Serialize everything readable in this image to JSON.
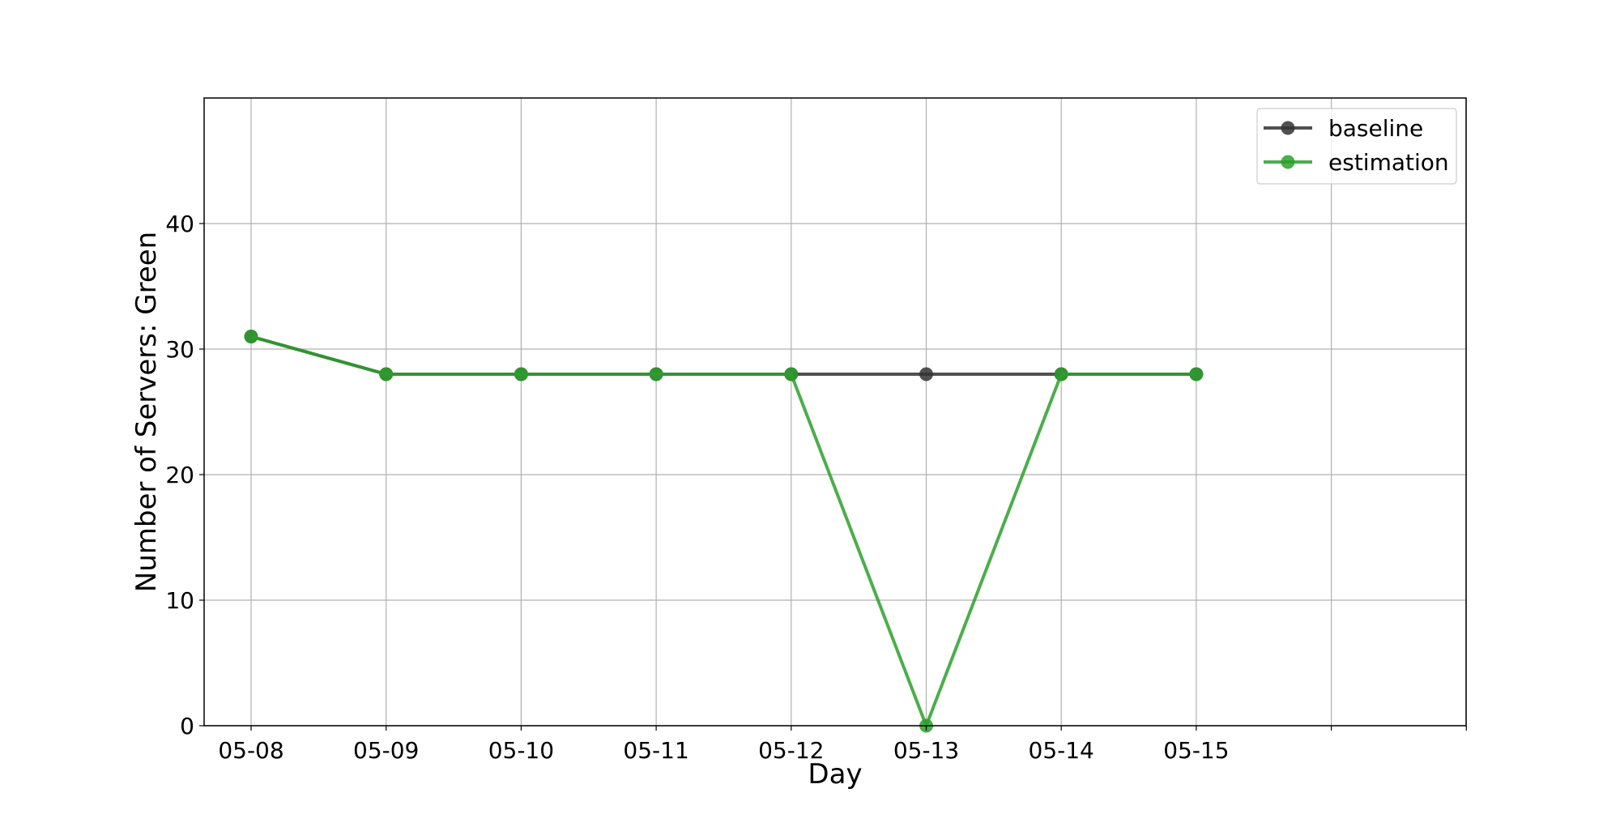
{
  "chart_data": {
    "type": "line",
    "title": "",
    "xlabel": "Day",
    "ylabel": "Number of Servers: Green",
    "categories": [
      "05-08",
      "05-09",
      "05-10",
      "05-11",
      "05-12",
      "05-13",
      "05-14",
      "05-15"
    ],
    "x_extra_ticks": 2,
    "ylim": [
      0,
      50
    ],
    "yticks": [
      0,
      10,
      20,
      30,
      40
    ],
    "grid": true,
    "legend_position": "top-right",
    "series": [
      {
        "name": "baseline",
        "color": "#333333",
        "values": [
          31,
          28,
          28,
          28,
          28,
          28,
          28,
          28
        ]
      },
      {
        "name": "estimation",
        "color": "#2ca02c",
        "values": [
          31,
          28,
          28,
          28,
          28,
          0,
          28,
          28
        ]
      }
    ]
  }
}
